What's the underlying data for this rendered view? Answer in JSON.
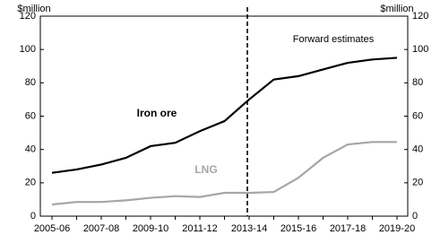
{
  "chart_data": {
    "type": "line",
    "y_label": "$million",
    "y2_label": "$million",
    "annotation": "Forward estimates",
    "forecast_start": "2013-14",
    "categories": [
      "2005-06",
      null,
      "2007-08",
      null,
      "2009-10",
      null,
      "2011-12",
      null,
      "2013-14",
      null,
      "2015-16",
      null,
      "2017-18",
      null,
      "2019-20"
    ],
    "series": [
      {
        "name": "Iron ore",
        "color": "#000000",
        "values": [
          26,
          28,
          31,
          35,
          42,
          44,
          51,
          57,
          70,
          82,
          84,
          88,
          92,
          94,
          95
        ]
      },
      {
        "name": "LNG",
        "color": "#a6a6a6",
        "values": [
          7,
          8.5,
          8.5,
          9.5,
          11,
          12,
          11.5,
          14,
          14,
          14.5,
          23,
          35,
          43,
          44.5,
          44.5
        ]
      }
    ],
    "ylim": [
      0,
      120
    ],
    "yticks": [
      0,
      20,
      40,
      60,
      80,
      100,
      120
    ],
    "y2lim": [
      0,
      120
    ],
    "y2ticks": [
      0,
      20,
      40,
      60,
      80,
      100,
      120
    ],
    "grid": false
  }
}
